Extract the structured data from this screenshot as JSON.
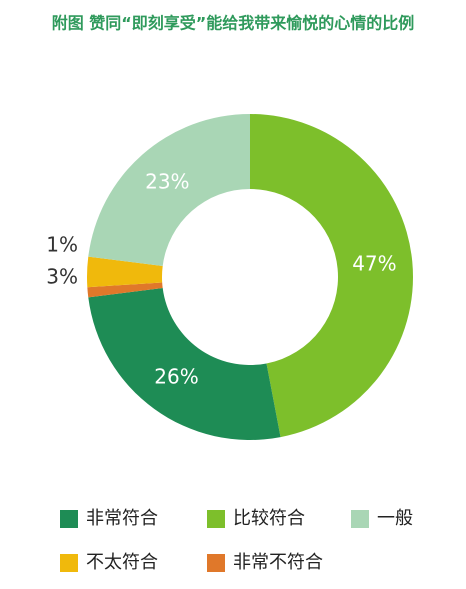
{
  "chart_data": {
    "type": "donut",
    "title": "附图 赞同“即刻享受”能给我带来愉悦的心情的比例",
    "categories": [
      "非常符合",
      "比较符合",
      "一般",
      "不太符合",
      "非常不符合"
    ],
    "values": [
      26,
      47,
      23,
      3,
      1
    ],
    "value_labels": [
      "26%",
      "47%",
      "23%",
      "3%",
      "1%"
    ],
    "colors": [
      "#1e8c55",
      "#7dbf2b",
      "#a9d6b5",
      "#f0b90c",
      "#e0782a"
    ]
  }
}
